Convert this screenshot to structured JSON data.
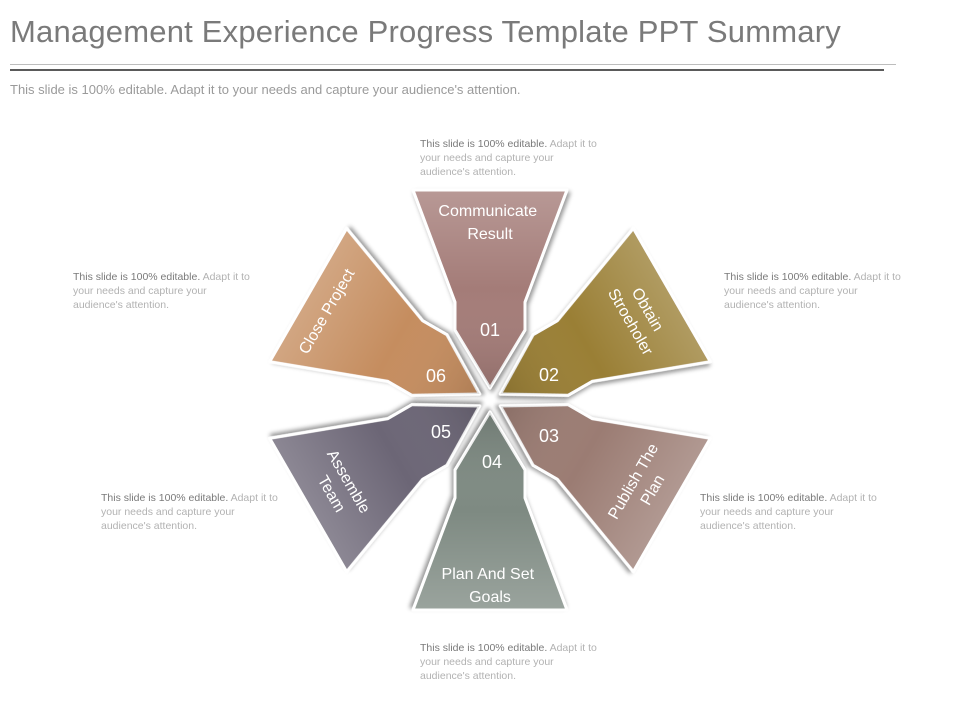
{
  "slide": {
    "title": "Management Experience Progress Template PPT Summary",
    "subtitle": "This slide is 100% editable. Adapt it to your needs and capture your audience's attention."
  },
  "colors": {
    "step1": "#a47b78",
    "step2": "#9a7f36",
    "step3": "#9b7c73",
    "step4": "#7e8a82",
    "step5": "#6c6676",
    "step6": "#c58d5f"
  },
  "steps": [
    {
      "number": "01",
      "label_lines": [
        "Communicate",
        "Result"
      ],
      "desc_highlight": "This slide is 100% editable.",
      "desc_rest": " Adapt it to your needs and capture your audience's attention."
    },
    {
      "number": "02",
      "label_lines": [
        "Obtain",
        "Stroeholer"
      ],
      "desc_highlight": "This slide is 100% editable.",
      "desc_rest": " Adapt it to your needs and capture your audience's attention."
    },
    {
      "number": "03",
      "label_lines": [
        "Publish The",
        "Plan"
      ],
      "desc_highlight": "This slide is 100% editable.",
      "desc_rest": " Adapt it to your needs and capture your audience's attention."
    },
    {
      "number": "04",
      "label_lines": [
        "Plan And Set",
        "Goals"
      ],
      "desc_highlight": "This slide is 100% editable.",
      "desc_rest": " Adapt it to your needs and capture your audience's attention."
    },
    {
      "number": "05",
      "label_lines": [
        "Assemble",
        "Team"
      ],
      "desc_highlight": "This slide is 100% editable.",
      "desc_rest": " Adapt it to your needs and capture your audience's attention."
    },
    {
      "number": "06",
      "label_lines": [
        "Close Project"
      ],
      "desc_highlight": "This slide is 100% editable.",
      "desc_rest": " Adapt it to your needs and capture your audience's attention."
    }
  ]
}
